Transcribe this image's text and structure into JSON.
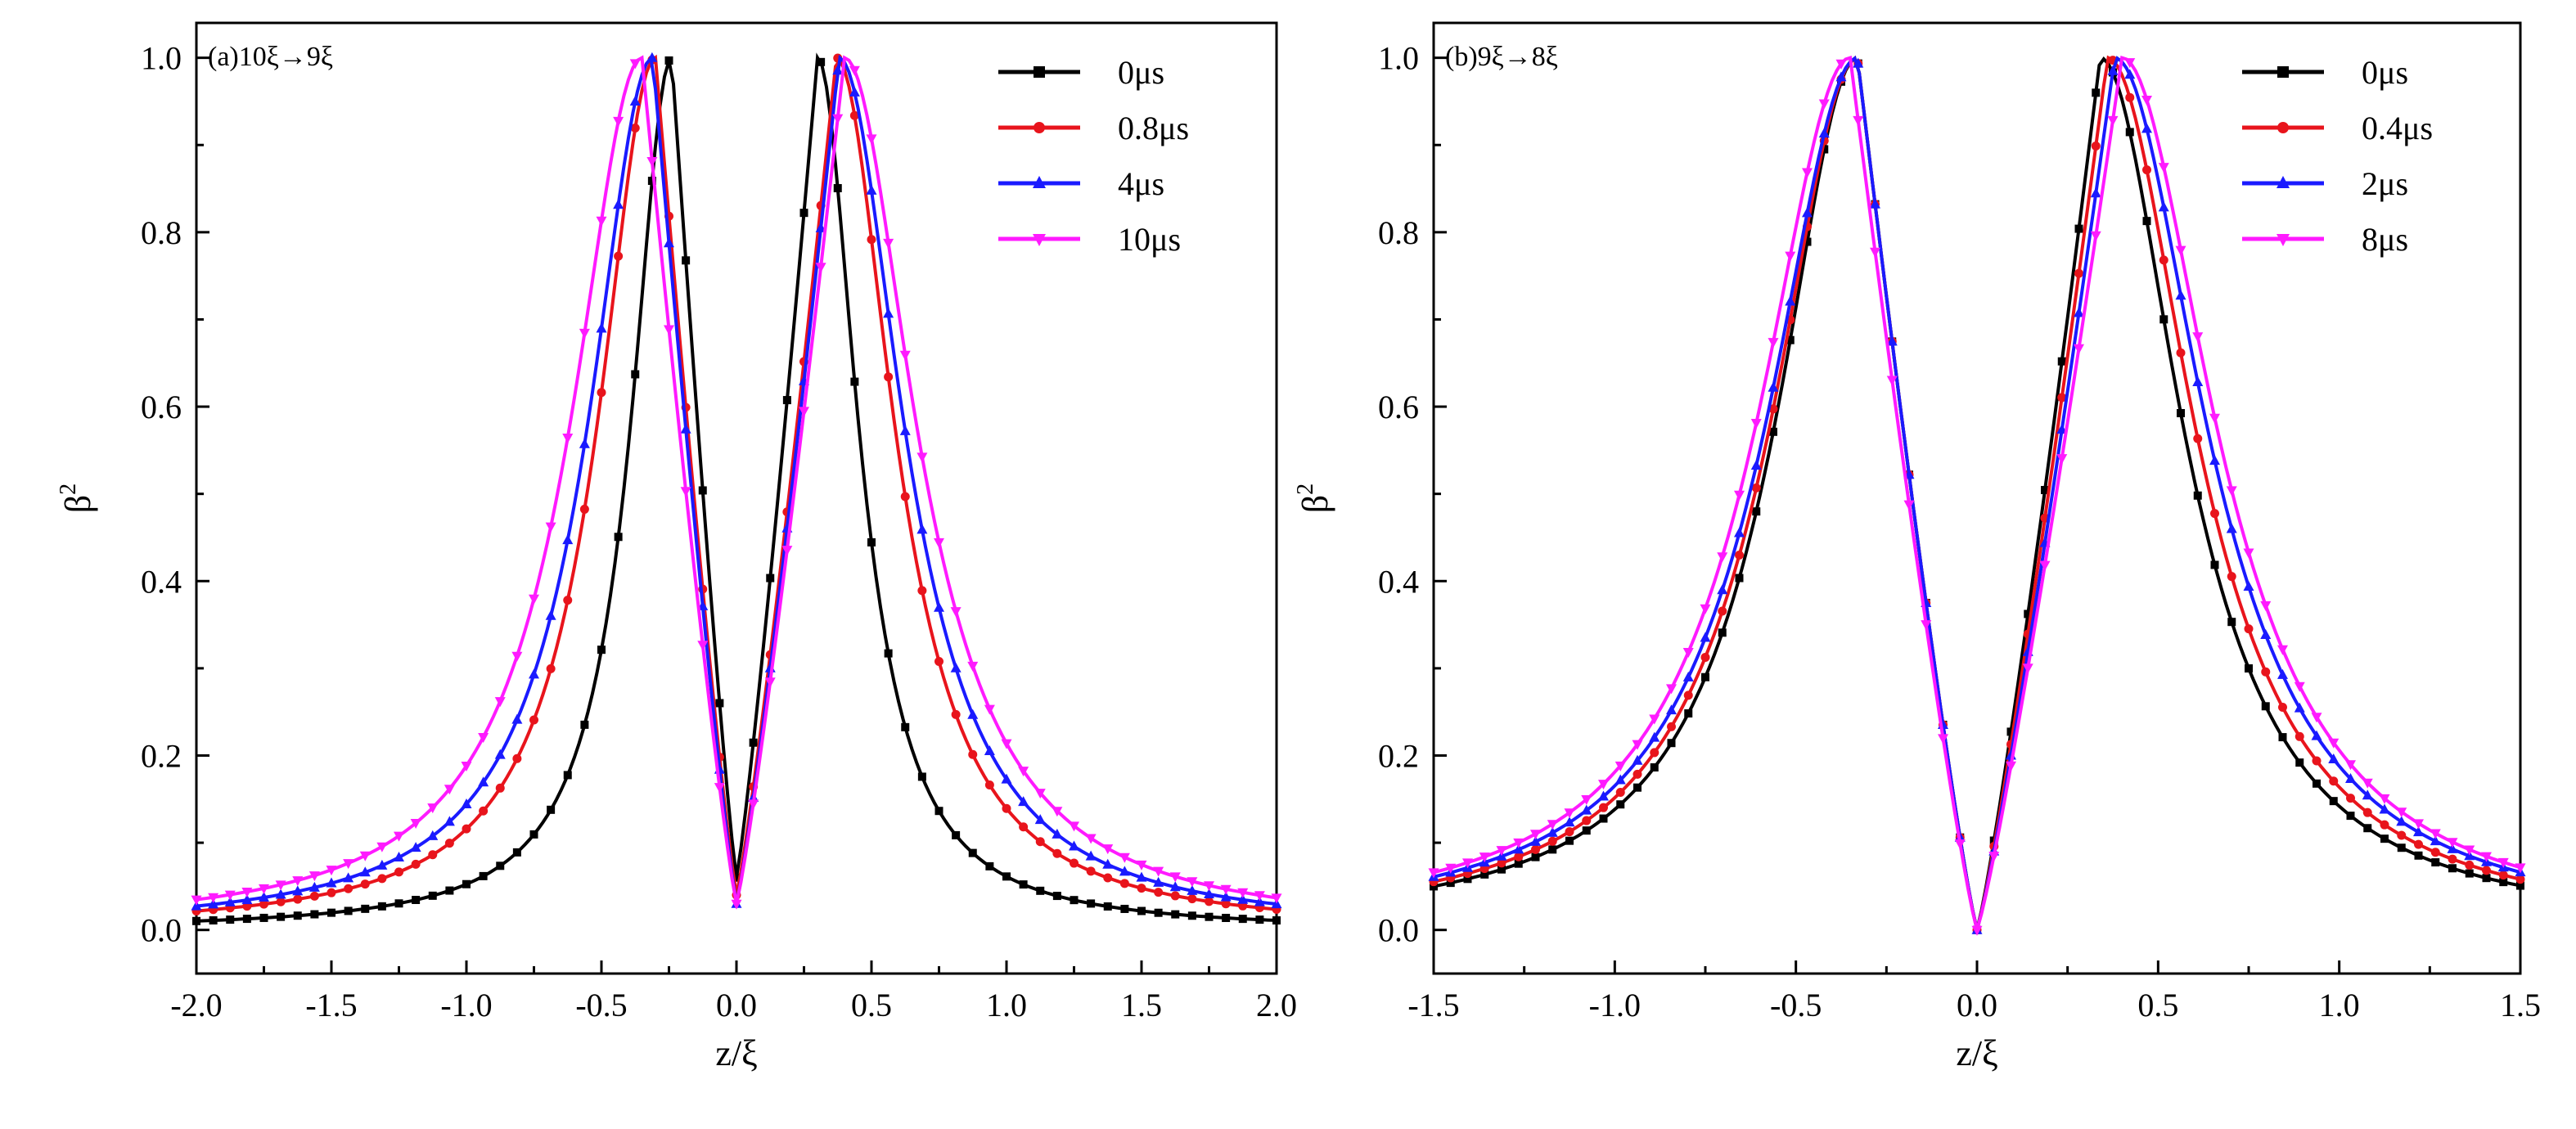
{
  "chart_data": [
    {
      "type": "line",
      "title": "(a)10ξ→9ξ",
      "xlabel": "z/ξ",
      "ylabel": "β",
      "ylabel_superscript": "2",
      "xlim": [
        -2.0,
        2.0
      ],
      "ylim": [
        0.0,
        1.0
      ],
      "xticks": [
        "-2.0",
        "-1.5",
        "-1.0",
        "-0.5",
        "0.0",
        "0.5",
        "1.0",
        "1.5",
        "2.0"
      ],
      "yticks": [
        "0.0",
        "0.2",
        "0.4",
        "0.6",
        "0.8",
        "1.0"
      ],
      "legend_position": "top-right",
      "series": [
        {
          "name": "0μs",
          "color": "#000000",
          "marker": "square",
          "peak_left": -0.24,
          "peak_right": 0.3,
          "width_left": 0.24,
          "width_right": 0.24,
          "min": 0.06
        },
        {
          "name": "0.8μs",
          "color": "#e8141c",
          "marker": "circle",
          "peak_left": -0.3,
          "peak_right": 0.37,
          "width_left": 0.34,
          "width_right": 0.34,
          "min": 0.04
        },
        {
          "name": "4μs",
          "color": "#1a1aff",
          "marker": "triangle-up",
          "peak_left": -0.31,
          "peak_right": 0.38,
          "width_left": 0.38,
          "width_right": 0.38,
          "min": 0.03
        },
        {
          "name": "10μs",
          "color": "#ff1aff",
          "marker": "triangle-down",
          "peak_left": -0.35,
          "peak_right": 0.4,
          "width_left": 0.42,
          "width_right": 0.42,
          "min": 0.03
        }
      ]
    },
    {
      "type": "line",
      "title": "(b)9ξ→8ξ",
      "xlabel": "z/ξ",
      "ylabel": "β",
      "ylabel_superscript": "2",
      "xlim": [
        -1.5,
        1.5
      ],
      "ylim": [
        0.0,
        1.0
      ],
      "xticks": [
        "-1.5",
        "-1.0",
        "-0.5",
        "0.0",
        "0.5",
        "1.0",
        "1.5"
      ],
      "yticks": [
        "0.0",
        "0.2",
        "0.4",
        "0.6",
        "0.8",
        "1.0"
      ],
      "legend_position": "top-right",
      "series": [
        {
          "name": "0μs",
          "color": "#000000",
          "marker": "square",
          "peak_left": -0.33,
          "peak_right": 0.34,
          "width_left": 0.36,
          "width_right": 0.36,
          "min": 0.0
        },
        {
          "name": "0.4μs",
          "color": "#e8141c",
          "marker": "circle",
          "peak_left": -0.33,
          "peak_right": 0.36,
          "width_left": 0.38,
          "width_right": 0.38,
          "min": 0.0
        },
        {
          "name": "2μs",
          "color": "#1a1aff",
          "marker": "triangle-up",
          "peak_left": -0.33,
          "peak_right": 0.38,
          "width_left": 0.4,
          "width_right": 0.4,
          "min": 0.0
        },
        {
          "name": "8μs",
          "color": "#ff1aff",
          "marker": "triangle-down",
          "peak_left": -0.35,
          "peak_right": 0.4,
          "width_left": 0.41,
          "width_right": 0.41,
          "min": 0.0
        }
      ]
    }
  ]
}
